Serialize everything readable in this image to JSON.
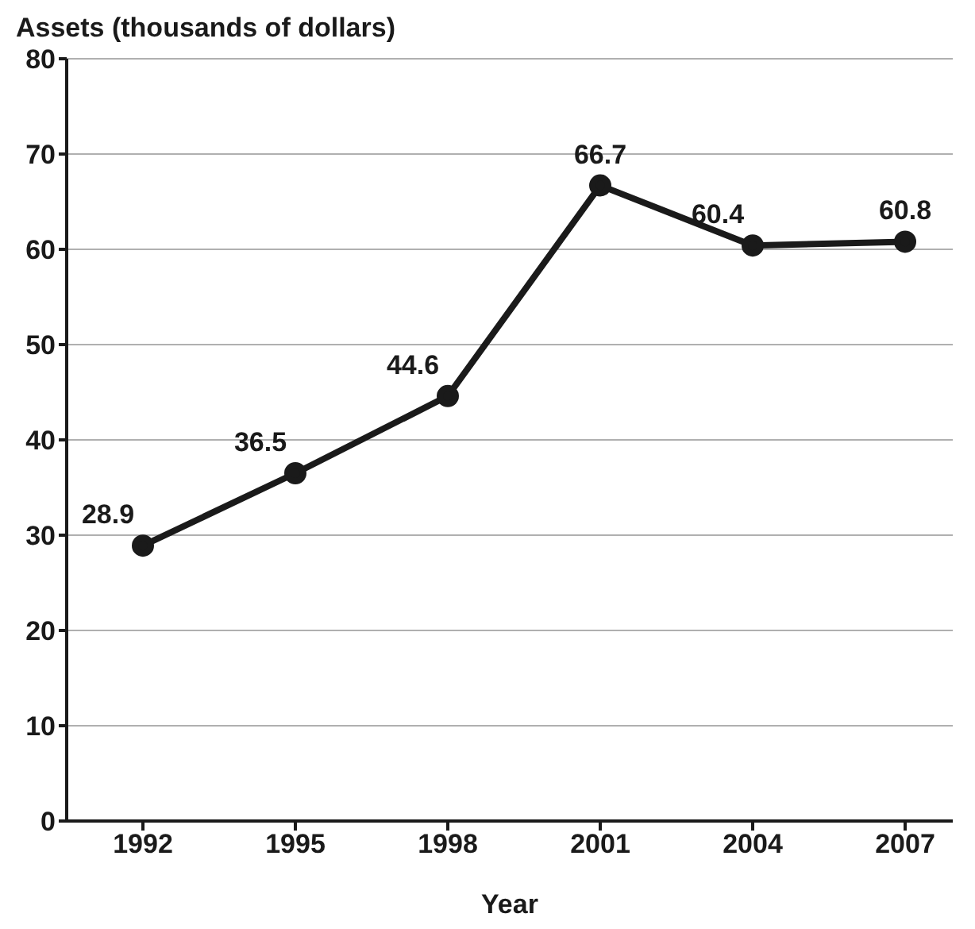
{
  "chart_data": {
    "type": "line",
    "ylabel": "Assets (thousands of dollars)",
    "xlabel": "Year",
    "categories": [
      "1992",
      "1995",
      "1998",
      "2001",
      "2004",
      "2007"
    ],
    "values": [
      28.9,
      36.5,
      44.6,
      66.7,
      60.4,
      60.8
    ],
    "color": "#1a1a1a",
    "ylim": [
      0,
      80
    ],
    "yticks": [
      0,
      10,
      20,
      30,
      40,
      50,
      60,
      70,
      80
    ],
    "grid": "y",
    "marker": "circle",
    "line_style": "solid",
    "data_labels": true
  }
}
